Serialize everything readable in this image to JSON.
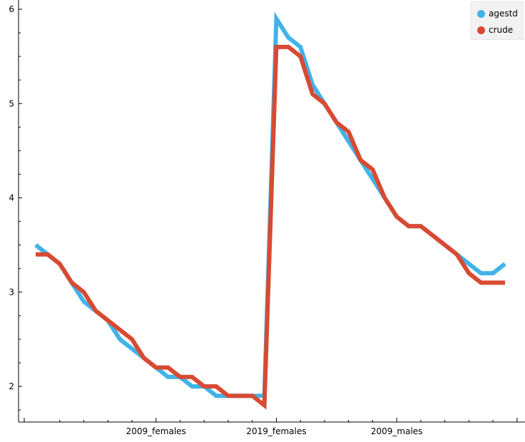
{
  "chart_data": {
    "type": "line",
    "title": "",
    "xlabel": "",
    "ylabel": "",
    "ylim": [
      1.6,
      6.2
    ],
    "yticks": [
      2,
      3,
      4,
      5,
      6
    ],
    "ytick_labels": [
      "2",
      "3",
      "4",
      "5",
      "6"
    ],
    "x_categories_visible": [
      "2009_females",
      "2019_females",
      "2009_males"
    ],
    "x_tick_positions": [
      10,
      20,
      30
    ],
    "xlim": [
      -1,
      40
    ],
    "grid": false,
    "legend_placement": "top-right",
    "series": [
      {
        "name": "agestd",
        "color": "#41b3e8",
        "x": [
          0,
          1,
          2,
          3,
          4,
          5,
          6,
          7,
          8,
          9,
          10,
          11,
          12,
          13,
          14,
          15,
          16,
          17,
          18,
          19,
          20,
          21,
          22,
          23,
          24,
          25,
          26,
          27,
          28,
          29,
          30,
          31,
          32,
          33,
          34,
          35,
          36,
          37,
          38,
          39
        ],
        "values": [
          3.5,
          3.4,
          3.3,
          3.1,
          2.9,
          2.8,
          2.7,
          2.5,
          2.4,
          2.3,
          2.2,
          2.1,
          2.1,
          2.0,
          2.0,
          1.9,
          1.9,
          1.9,
          1.9,
          1.9,
          5.9,
          5.7,
          5.6,
          5.2,
          5.0,
          4.8,
          4.6,
          4.4,
          4.2,
          4.0,
          3.8,
          3.7,
          3.7,
          3.6,
          3.5,
          3.4,
          3.3,
          3.2,
          3.2,
          3.3
        ]
      },
      {
        "name": "crude",
        "color": "#d84a32",
        "x": [
          0,
          1,
          2,
          3,
          4,
          5,
          6,
          7,
          8,
          9,
          10,
          11,
          12,
          13,
          14,
          15,
          16,
          17,
          18,
          19,
          20,
          21,
          22,
          23,
          24,
          25,
          26,
          27,
          28,
          29,
          30,
          31,
          32,
          33,
          34,
          35,
          36,
          37,
          38,
          39
        ],
        "values": [
          3.4,
          3.4,
          3.3,
          3.1,
          3.0,
          2.8,
          2.7,
          2.6,
          2.5,
          2.3,
          2.2,
          2.2,
          2.1,
          2.1,
          2.0,
          2.0,
          1.9,
          1.9,
          1.9,
          1.8,
          5.6,
          5.6,
          5.5,
          5.1,
          5.0,
          4.8,
          4.7,
          4.4,
          4.3,
          4.0,
          3.8,
          3.7,
          3.7,
          3.6,
          3.5,
          3.4,
          3.2,
          3.1,
          3.1,
          3.1
        ]
      }
    ]
  }
}
